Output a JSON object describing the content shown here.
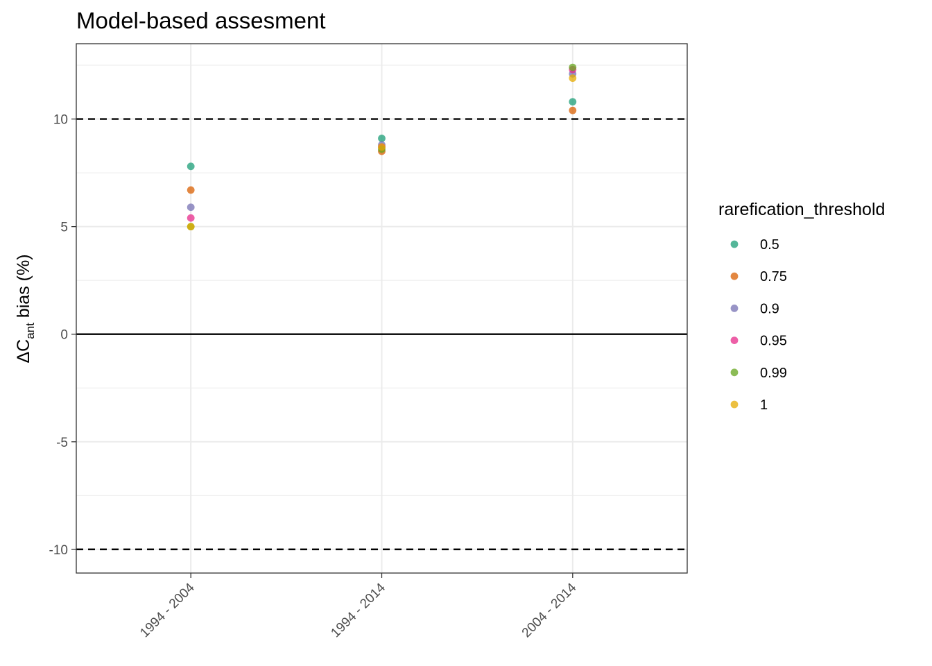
{
  "chart_data": {
    "type": "scatter",
    "title": "Model-based assesment",
    "xlabel": "",
    "ylabel": {
      "prefix": "ΔC",
      "subscript": "ant",
      "suffix": " bias (%)"
    },
    "categories": [
      "1994 - 2004",
      "1994 - 2014",
      "2004 - 2014"
    ],
    "ylim": [
      -11.1,
      13.5
    ],
    "yticks": [
      -10,
      -5,
      0,
      5,
      10
    ],
    "ytick_labels": [
      "-10",
      "-5",
      "0",
      "5",
      "10"
    ],
    "reference_lines": [
      {
        "y": 10,
        "style": "dashed"
      },
      {
        "y": 0,
        "style": "solid"
      },
      {
        "y": -10,
        "style": "dashed"
      }
    ],
    "grid": true,
    "legend": {
      "title": "rarefication_threshold",
      "position": "right"
    },
    "series": [
      {
        "name": "0.5",
        "color": "#1B9E77",
        "values": [
          7.8,
          9.1,
          10.8
        ]
      },
      {
        "name": "0.75",
        "color": "#D95F02",
        "values": [
          6.7,
          8.5,
          10.4
        ]
      },
      {
        "name": "0.9",
        "color": "#7570B3",
        "values": [
          5.9,
          8.8,
          12.1
        ]
      },
      {
        "name": "0.95",
        "color": "#E7298A",
        "values": [
          5.4,
          8.7,
          12.3
        ]
      },
      {
        "name": "0.99",
        "color": "#66A61E",
        "values": [
          5.0,
          8.6,
          12.4
        ]
      },
      {
        "name": "1",
        "color": "#E6AB02",
        "values": [
          5.0,
          8.7,
          11.9
        ]
      }
    ]
  }
}
